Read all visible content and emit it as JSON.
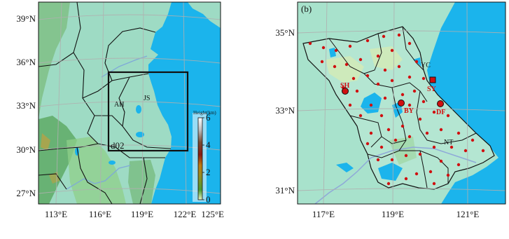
{
  "panel_a": {
    "lat_labels": [
      "39°N",
      "36°N",
      "33°N",
      "30°N",
      "27°N"
    ],
    "lon_labels": [
      "113°E",
      "116°E",
      "119°E",
      "122°E",
      "125°E"
    ],
    "region_labels": {
      "ah": "AH",
      "js": "JS",
      "domain": "d02"
    },
    "colorbar": {
      "title": "Height(km)",
      "ticks": [
        "6",
        "4",
        "2",
        "0"
      ],
      "colors": [
        "#ffffff",
        "#bdbdbd",
        "#7a4a30",
        "#8a1a10",
        "#c07a10",
        "#9a8a20",
        "#4a9a30",
        "#e8f0c0"
      ]
    }
  },
  "panel_b": {
    "panel_label": "(b)",
    "lat_labels": [
      "35°N",
      "33°N",
      "31°N"
    ],
    "lon_labels": [
      "117°E",
      "119°E",
      "121°E"
    ],
    "city_labels": {
      "yc": "YC",
      "nt": "NT"
    },
    "sites": [
      {
        "code": "SH",
        "shape": "circle"
      },
      {
        "code": "BY",
        "shape": "circle"
      },
      {
        "code": "SY",
        "shape": "square"
      },
      {
        "code": "DF",
        "shape": "circle"
      }
    ]
  },
  "colors": {
    "ocean": "#1bb4ec",
    "land_a": "#9edbc4",
    "land_b": "#a8e2cc",
    "site": "#d01010"
  }
}
